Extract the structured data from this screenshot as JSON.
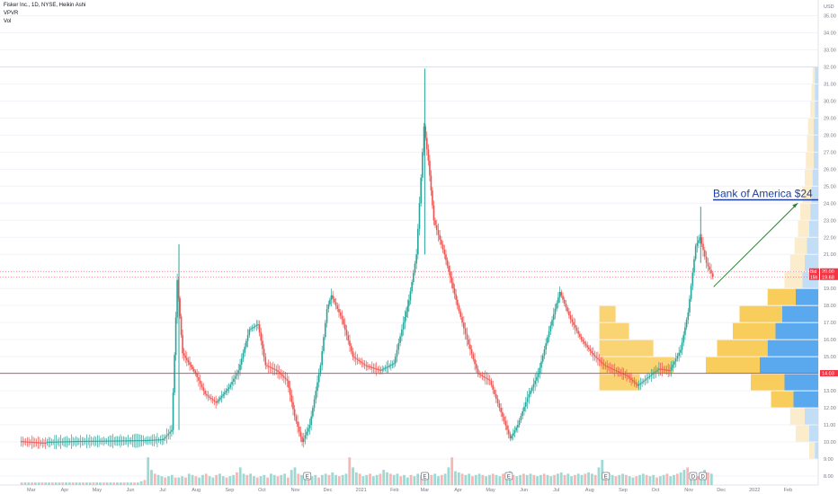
{
  "header": {
    "symbol_line": "Fisker Inc., 1D, NYSE, Heikin Ashi",
    "indicator_1": "VPVR",
    "indicator_2": "Vol"
  },
  "chart_data": {
    "type": "candlestick",
    "currency_label": "USD",
    "ylim": [
      8.0,
      35.5
    ],
    "y_ticks": [
      "35.00",
      "34.00",
      "33.00",
      "32.00",
      "31.00",
      "30.00",
      "29.00",
      "28.00",
      "27.00",
      "26.00",
      "25.00",
      "24.00",
      "23.00",
      "22.00",
      "21.00",
      "20.00",
      "19.00",
      "18.00",
      "17.00",
      "16.00",
      "15.00",
      "14.00",
      "13.00",
      "12.00",
      "11.00",
      "10.00",
      "9.00",
      "8.00"
    ],
    "x_ticks": [
      "Mar",
      "Apr",
      "May",
      "Jun",
      "Jul",
      "Aug",
      "Sep",
      "Oct",
      "Nov",
      "Dec",
      "2021",
      "Feb",
      "Mar",
      "Apr",
      "May",
      "Jun",
      "Jul",
      "Aug",
      "Sep",
      "Oct",
      "Nov",
      "Dec",
      "2022",
      "Feb"
    ],
    "price_series": [
      [
        "2020-02-20",
        10.05
      ],
      [
        "2020-03-15",
        9.95
      ],
      [
        "2020-04-15",
        10.0
      ],
      [
        "2020-05-15",
        10.02
      ],
      [
        "2020-06-15",
        10.05
      ],
      [
        "2020-07-01",
        10.1
      ],
      [
        "2020-07-10",
        10.7
      ],
      [
        "2020-07-15",
        19.5
      ],
      [
        "2020-07-20",
        15.2
      ],
      [
        "2020-08-01",
        14.0
      ],
      [
        "2020-08-10",
        12.8
      ],
      [
        "2020-08-20",
        12.3
      ],
      [
        "2020-09-01",
        13.2
      ],
      [
        "2020-09-10",
        14.2
      ],
      [
        "2020-09-20",
        16.6
      ],
      [
        "2020-09-28",
        16.9
      ],
      [
        "2020-10-05",
        14.5
      ],
      [
        "2020-10-15",
        14.2
      ],
      [
        "2020-10-25",
        13.6
      ],
      [
        "2020-11-01",
        11.5
      ],
      [
        "2020-11-08",
        10.0
      ],
      [
        "2020-11-15",
        11.0
      ],
      [
        "2020-11-25",
        14.5
      ],
      [
        "2020-12-01",
        17.8
      ],
      [
        "2020-12-05",
        18.6
      ],
      [
        "2020-12-15",
        17.2
      ],
      [
        "2020-12-25",
        15.0
      ],
      [
        "2021-01-05",
        14.5
      ],
      [
        "2021-01-20",
        14.2
      ],
      [
        "2021-02-01",
        14.6
      ],
      [
        "2021-02-10",
        17.0
      ],
      [
        "2021-02-15",
        18.3
      ],
      [
        "2021-02-22",
        21.0
      ],
      [
        "2021-03-01",
        28.5
      ],
      [
        "2021-03-05",
        26.5
      ],
      [
        "2021-03-10",
        23.0
      ],
      [
        "2021-03-20",
        21.0
      ],
      [
        "2021-04-01",
        18.0
      ],
      [
        "2021-04-10",
        16.0
      ],
      [
        "2021-04-20",
        14.0
      ],
      [
        "2021-05-01",
        13.6
      ],
      [
        "2021-05-10",
        12.0
      ],
      [
        "2021-05-20",
        10.2
      ],
      [
        "2021-05-27",
        11.0
      ],
      [
        "2021-06-05",
        12.6
      ],
      [
        "2021-06-15",
        14.0
      ],
      [
        "2021-06-25",
        16.5
      ],
      [
        "2021-07-05",
        18.8
      ],
      [
        "2021-07-15",
        17.2
      ],
      [
        "2021-07-25",
        16.0
      ],
      [
        "2021-08-05",
        15.1
      ],
      [
        "2021-08-15",
        14.5
      ],
      [
        "2021-08-25",
        14.2
      ],
      [
        "2021-09-05",
        13.9
      ],
      [
        "2021-09-15",
        13.3
      ],
      [
        "2021-09-25",
        13.8
      ],
      [
        "2021-10-05",
        14.3
      ],
      [
        "2021-10-15",
        14.2
      ],
      [
        "2021-10-25",
        15.4
      ],
      [
        "2021-11-01",
        17.6
      ],
      [
        "2021-11-08",
        21.5
      ],
      [
        "2021-11-12",
        22.0
      ],
      [
        "2021-11-18",
        20.5
      ],
      [
        "2021-11-24",
        19.68
      ]
    ],
    "volume_bars": [
      2,
      2,
      2,
      2,
      2,
      2,
      2,
      2,
      2,
      2,
      2,
      2,
      2,
      2,
      2,
      2,
      2,
      2,
      2,
      2,
      2,
      2,
      2,
      2,
      2,
      2,
      2,
      2,
      2,
      2,
      2,
      2,
      2,
      2,
      2,
      3,
      4,
      22,
      12,
      9,
      8,
      7,
      6,
      7,
      8,
      6,
      6,
      7,
      6,
      9,
      8,
      7,
      6,
      8,
      9,
      7,
      6,
      8,
      9,
      7,
      6,
      7,
      8,
      10,
      14,
      9,
      8,
      9,
      7,
      6,
      7,
      8,
      6,
      9,
      8,
      7,
      8,
      9,
      6,
      12,
      14,
      9,
      8,
      10,
      9,
      7,
      8,
      6,
      8,
      9,
      8,
      10,
      8,
      7,
      8,
      9,
      22,
      14,
      10,
      9,
      7,
      8,
      9,
      7,
      8,
      9,
      12,
      10,
      9,
      8,
      9,
      7,
      8,
      6,
      8,
      7,
      9,
      8,
      7,
      9,
      8,
      9,
      7,
      8,
      9,
      14,
      22,
      11,
      10,
      9,
      8,
      9,
      7,
      8,
      9,
      8,
      7,
      8,
      9,
      8,
      7,
      9,
      10,
      11,
      8,
      7,
      8,
      9,
      8,
      9,
      8,
      7,
      8,
      9,
      8,
      7,
      8,
      9,
      10,
      8,
      9,
      7,
      8,
      9,
      8,
      9,
      10,
      9,
      8,
      14,
      20,
      10,
      9,
      8,
      7,
      8,
      9,
      8,
      7,
      6,
      7,
      8,
      9,
      8,
      7,
      8,
      6,
      7,
      8,
      9,
      7,
      8,
      9,
      10,
      12,
      14,
      9,
      8,
      7,
      9,
      12,
      10,
      9
    ],
    "volume_profile": [
      {
        "price": 31,
        "buy": 0.03,
        "total": 0.05
      },
      {
        "price": 30,
        "buy": 0.03,
        "total": 0.06
      },
      {
        "price": 29,
        "buy": 0.03,
        "total": 0.07
      },
      {
        "price": 28,
        "buy": 0.04,
        "total": 0.09
      },
      {
        "price": 27,
        "buy": 0.04,
        "total": 0.1
      },
      {
        "price": 26,
        "buy": 0.04,
        "total": 0.11
      },
      {
        "price": 25,
        "buy": 0.05,
        "total": 0.12
      },
      {
        "price": 24,
        "buy": 0.06,
        "total": 0.14
      },
      {
        "price": 23,
        "buy": 0.07,
        "total": 0.16
      },
      {
        "price": 22,
        "buy": 0.08,
        "total": 0.18
      },
      {
        "price": 21,
        "buy": 0.1,
        "total": 0.21
      },
      {
        "price": 20,
        "buy": 0.12,
        "total": 0.25
      },
      {
        "price": 19,
        "buy": 0.14,
        "total": 0.3
      },
      {
        "price": 18,
        "buy": 0.2,
        "total": 0.45
      },
      {
        "price": 17,
        "buy": 0.32,
        "total": 0.7
      },
      {
        "price": 16,
        "buy": 0.38,
        "total": 0.76
      },
      {
        "price": 15,
        "buy": 0.45,
        "total": 0.9
      },
      {
        "price": 14,
        "buy": 0.52,
        "total": 1.0
      },
      {
        "price": 13,
        "buy": 0.3,
        "total": 0.6
      },
      {
        "price": 12,
        "buy": 0.22,
        "total": 0.42
      },
      {
        "price": 11,
        "buy": 0.12,
        "total": 0.25
      },
      {
        "price": 10,
        "buy": 0.08,
        "total": 0.2
      },
      {
        "price": 9,
        "buy": 0.03,
        "total": 0.08
      }
    ],
    "horizontal_levels": [
      {
        "price": 14.03,
        "label": "14.03",
        "color": "#f23645",
        "style": "solid"
      },
      {
        "price": 20.0,
        "label": "20.00",
        "color": "#f7525f",
        "style": "dotted"
      },
      {
        "price": 19.68,
        "label": "19.68",
        "color": "#f23645",
        "style": "dotted"
      }
    ],
    "price_badges": [
      {
        "price": 20.0,
        "text": "20.00",
        "tag": "Bid"
      },
      {
        "price": 19.79,
        "text": "19.79",
        "tag": ""
      },
      {
        "price": 19.68,
        "text": "19.68",
        "tag": "15h"
      }
    ],
    "annotation": {
      "text": "Bank of America $24",
      "price": 24.2,
      "arrow_from": [
        "2021-11-24",
        19.1
      ],
      "arrow_to": [
        "2022-02-10",
        24.0
      ]
    },
    "event_markers": [
      {
        "date": "2020-11-12",
        "label": "E"
      },
      {
        "date": "2021-03-01",
        "label": "E"
      },
      {
        "date": "2021-05-18",
        "label": "E"
      },
      {
        "date": "2021-08-16",
        "label": "E"
      },
      {
        "date": "2021-11-05",
        "label": "D"
      },
      {
        "date": "2021-11-14",
        "label": "D"
      }
    ],
    "colors": {
      "up": "#26a69a",
      "down": "#ef5350",
      "vol_up": "#9ed9d3",
      "vol_down": "#f6b7b5",
      "profile_buy": "#5aa9ef",
      "profile_sell": "#f9cd5b",
      "profile_buy_light": "#c2def7",
      "profile_sell_light": "#fbeccb",
      "annotation": "#1c3f9e",
      "arrow": "#2e7d32"
    }
  }
}
